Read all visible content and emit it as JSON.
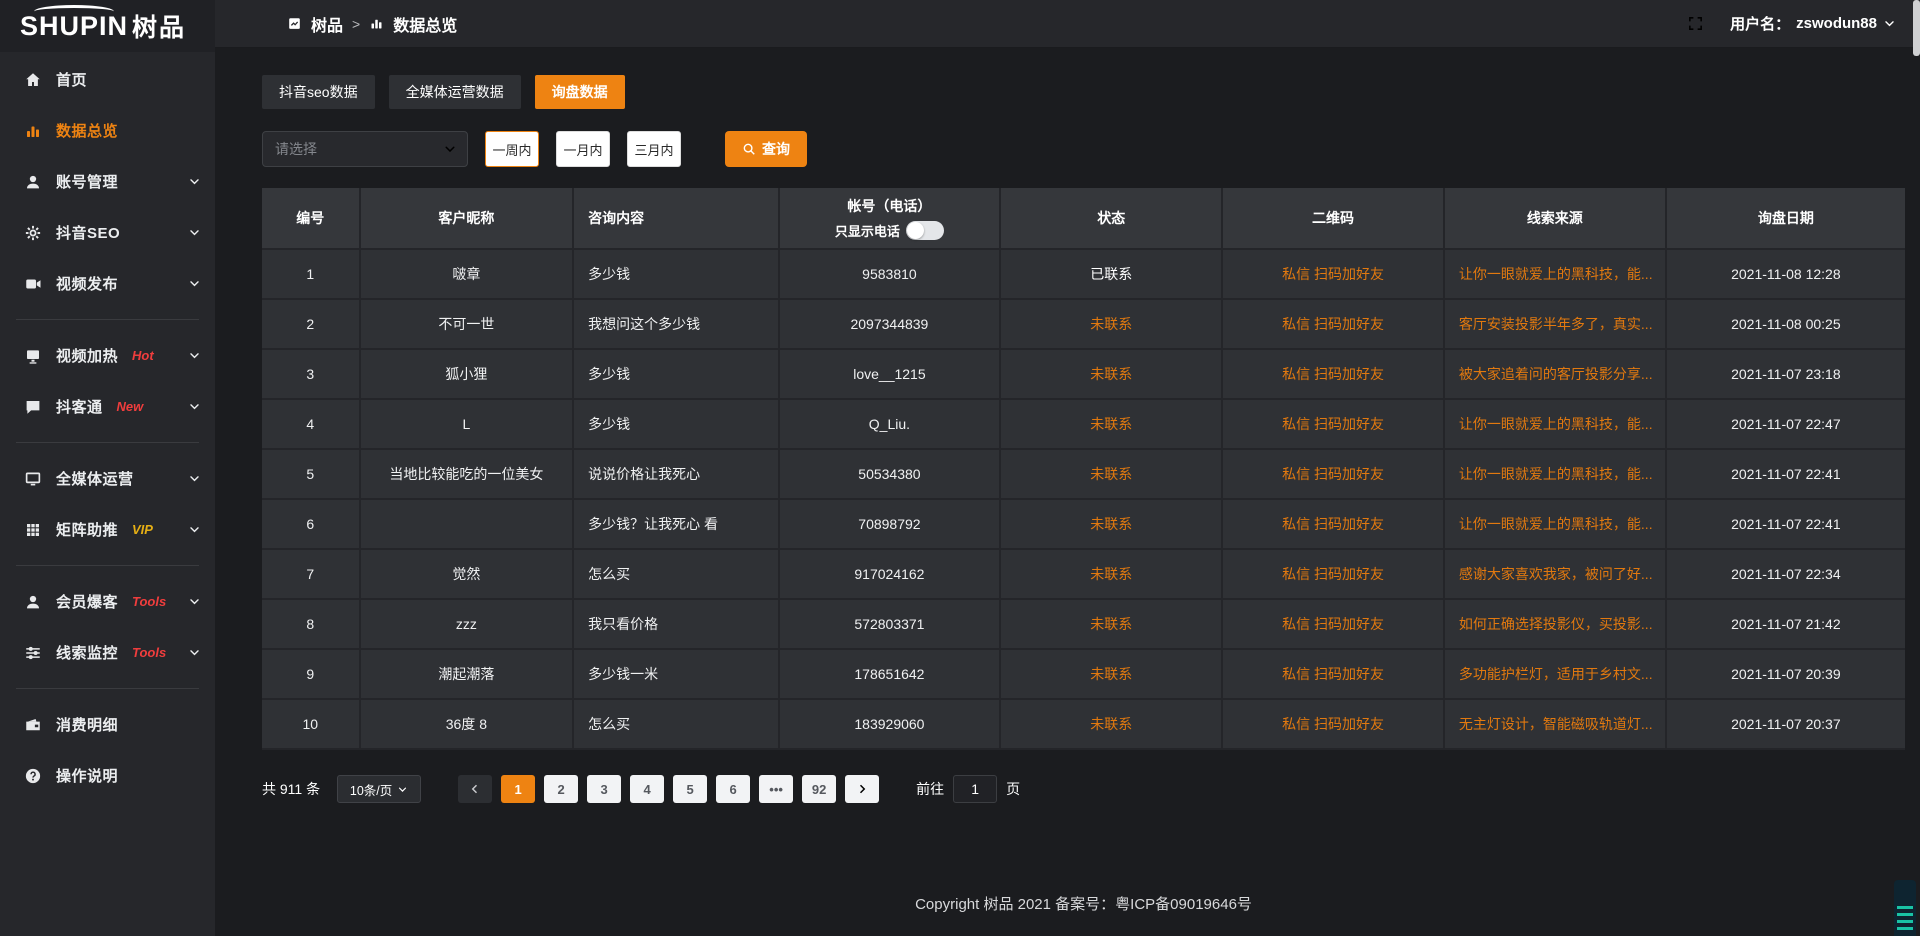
{
  "brand": {
    "logo_en": "SHUPIN",
    "logo_cn": "树品"
  },
  "topbar": {
    "breadcrumb_root": "树品",
    "breadcrumb_sep": ">",
    "breadcrumb_current": "数据总览",
    "username_label": "用户名：",
    "username": "zswodun88"
  },
  "sidebar": {
    "items": [
      {
        "label": "首页",
        "icon": "home",
        "chevron": false
      },
      {
        "label": "数据总览",
        "icon": "chart",
        "active": true,
        "chevron": false
      },
      {
        "label": "账号管理",
        "icon": "user",
        "chevron": true
      },
      {
        "label": "抖音SEO",
        "icon": "gear",
        "chevron": true
      },
      {
        "label": "视频发布",
        "icon": "video",
        "chevron": true
      },
      {
        "divider": true
      },
      {
        "label": "视频加热",
        "icon": "heat",
        "badge": "Hot",
        "badge_style": "red",
        "chevron": true
      },
      {
        "label": "抖客通",
        "icon": "chat",
        "badge": "New",
        "badge_style": "red",
        "chevron": true
      },
      {
        "divider": true
      },
      {
        "label": "全媒体运营",
        "icon": "monitor",
        "chevron": true
      },
      {
        "label": "矩阵助推",
        "icon": "grid",
        "badge": "VIP",
        "badge_style": "gold",
        "chevron": true
      },
      {
        "divider": true
      },
      {
        "label": "会员爆客",
        "icon": "user",
        "badge": "Tools",
        "badge_style": "red",
        "chevron": true
      },
      {
        "label": "线索监控",
        "icon": "sliders",
        "badge": "Tools",
        "badge_style": "red",
        "chevron": true
      },
      {
        "divider": true
      },
      {
        "label": "消费明细",
        "icon": "wallet",
        "chevron": false
      },
      {
        "label": "操作说明",
        "icon": "question",
        "chevron": false
      }
    ]
  },
  "tabs": [
    {
      "label": "抖音seo数据"
    },
    {
      "label": "全媒体运营数据"
    },
    {
      "label": "询盘数据",
      "active": true
    }
  ],
  "filters": {
    "select_placeholder": "请选择",
    "ranges": [
      {
        "label": "一周内",
        "active": true
      },
      {
        "label": "一月内"
      },
      {
        "label": "三月内"
      }
    ],
    "search_label": "查询"
  },
  "table": {
    "headers": {
      "id": "编号",
      "nickname": "客户昵称",
      "content": "咨询内容",
      "account": "帐号（电话）",
      "phone_toggle": "只显示电话",
      "status": "状态",
      "qrcode": "二维码",
      "source": "线索来源",
      "date": "询盘日期"
    },
    "rows": [
      {
        "id": "1",
        "nickname": "啵章",
        "content": "多少钱",
        "account": "9583810",
        "status": "已联系",
        "contacted": true,
        "qrcode": "私信 扫码加好友",
        "source": "让你一眼就爱上的黑科技，能...",
        "date": "2021-11-08 12:28"
      },
      {
        "id": "2",
        "nickname": "不可一世",
        "content": "我想问这个多少钱",
        "account": "2097344839",
        "status": "未联系",
        "qrcode": "私信 扫码加好友",
        "source": "客厅安装投影半年多了，真实...",
        "date": "2021-11-08 00:25"
      },
      {
        "id": "3",
        "nickname": "狐小狸",
        "content": "多少钱",
        "account": "love__1215",
        "status": "未联系",
        "qrcode": "私信 扫码加好友",
        "source": "被大家追着问的客厅投影分享...",
        "date": "2021-11-07 23:18"
      },
      {
        "id": "4",
        "nickname": "L",
        "content": "多少钱",
        "account": "Q_Liu.",
        "status": "未联系",
        "qrcode": "私信 扫码加好友",
        "source": "让你一眼就爱上的黑科技，能...",
        "date": "2021-11-07 22:47"
      },
      {
        "id": "5",
        "nickname": "当地比较能吃的一位美女",
        "content": "说说价格让我死心",
        "account": "50534380",
        "status": "未联系",
        "qrcode": "私信 扫码加好友",
        "source": "让你一眼就爱上的黑科技，能...",
        "date": "2021-11-07 22:41"
      },
      {
        "id": "6",
        "nickname": "",
        "content": "多少钱？让我死心 看",
        "account": "70898792",
        "status": "未联系",
        "qrcode": "私信 扫码加好友",
        "source": "让你一眼就爱上的黑科技，能...",
        "date": "2021-11-07 22:41"
      },
      {
        "id": "7",
        "nickname": "觉然",
        "content": "怎么买",
        "account": "917024162",
        "status": "未联系",
        "qrcode": "私信 扫码加好友",
        "source": "感谢大家喜欢我家，被问了好...",
        "date": "2021-11-07 22:34"
      },
      {
        "id": "8",
        "nickname": "zzz",
        "content": "我只看价格",
        "account": "572803371",
        "status": "未联系",
        "qrcode": "私信 扫码加好友",
        "source": "如何正确选择投影仪，买投影...",
        "date": "2021-11-07 21:42"
      },
      {
        "id": "9",
        "nickname": "潮起潮落",
        "content": "多少钱一米",
        "account": "178651642",
        "status": "未联系",
        "qrcode": "私信 扫码加好友",
        "source": "多功能护栏灯，适用于乡村文...",
        "date": "2021-11-07 20:39"
      },
      {
        "id": "10",
        "nickname": "36度 8",
        "content": "怎么买",
        "account": "183929060",
        "status": "未联系",
        "qrcode": "私信 扫码加好友",
        "source": "无主灯设计，智能磁吸轨道灯...",
        "date": "2021-11-07 20:37"
      }
    ]
  },
  "pagination": {
    "total": "共 911 条",
    "page_size": "10条/页",
    "pages": [
      {
        "label": "1",
        "active": true
      },
      {
        "label": "2"
      },
      {
        "label": "3"
      },
      {
        "label": "4"
      },
      {
        "label": "5"
      },
      {
        "label": "6"
      },
      {
        "label": "•••"
      },
      {
        "label": "92"
      }
    ],
    "goto_label": "前往",
    "goto_value": "1",
    "goto_unit": "页"
  },
  "footer": {
    "copyright": "Copyright 树品 2021 备案号：粤ICP备09019646号"
  },
  "colors": {
    "accent_orange": "#ee8312",
    "link_orange": "#e2790f",
    "badge_red": "#f03d3d",
    "badge_gold": "#e6af14",
    "row_bg": "#2f3135",
    "sidebar_bg": "#26272b"
  }
}
